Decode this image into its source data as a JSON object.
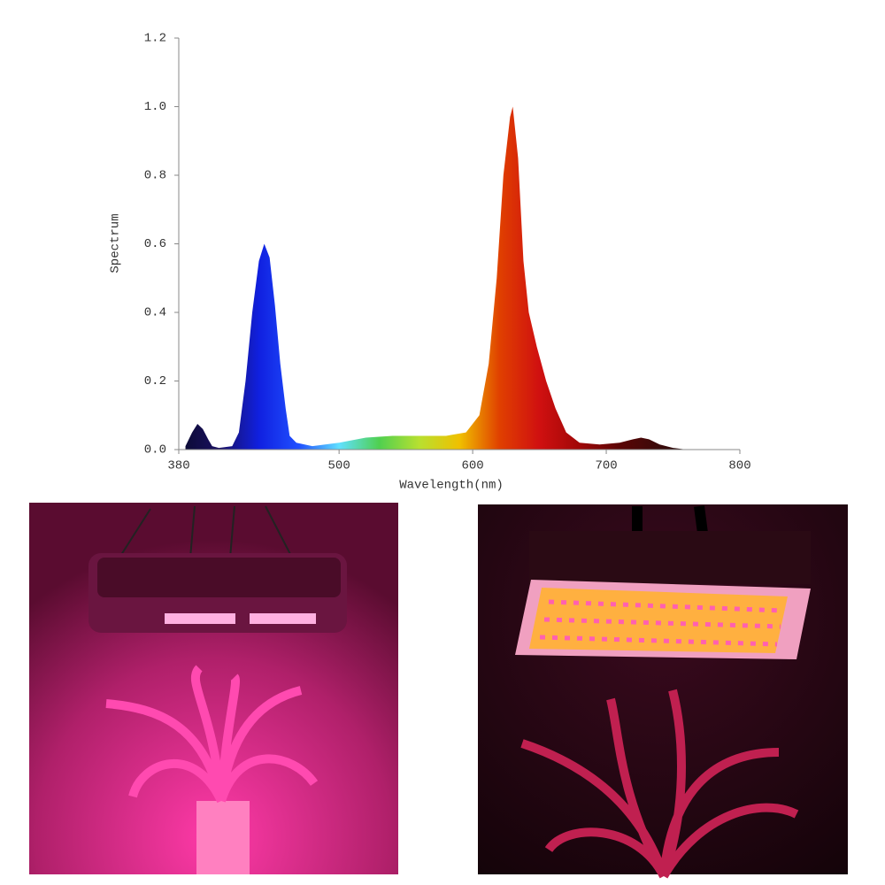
{
  "chart_data": {
    "type": "area",
    "x_label": "Wavelength(nm)",
    "y_label": "Spectrum",
    "xlim": [
      380,
      800
    ],
    "ylim": [
      0,
      1.2
    ],
    "xticks": [
      380,
      500,
      600,
      700,
      800
    ],
    "yticks": [
      {
        "value": 0,
        "label": "0.0"
      },
      0.2,
      0.4,
      0.6,
      0.8,
      {
        "value": 1,
        "label": "1.0"
      },
      1.2
    ],
    "gradient_colors": [
      "#0a0a30",
      "#1a1060",
      "#1020e0",
      "#2050ff",
      "#60e0ff",
      "#50d050",
      "#b8e030",
      "#f0c000",
      "#e04000",
      "#d01010",
      "#a00808",
      "#5a0505",
      "#3a0a0a",
      "#1a0505",
      "#100000"
    ],
    "x": [
      385,
      390,
      394,
      398,
      402,
      405,
      410,
      420,
      425,
      430,
      435,
      440,
      444,
      448,
      452,
      456,
      460,
      463,
      468,
      480,
      500,
      520,
      540,
      560,
      580,
      595,
      605,
      612,
      618,
      623,
      628,
      630,
      634,
      638,
      642,
      648,
      655,
      662,
      670,
      680,
      695,
      710,
      720,
      726,
      732,
      740,
      750,
      760
    ],
    "values": [
      0.01,
      0.05,
      0.075,
      0.06,
      0.03,
      0.01,
      0.005,
      0.01,
      0.05,
      0.2,
      0.4,
      0.55,
      0.6,
      0.56,
      0.42,
      0.25,
      0.12,
      0.04,
      0.02,
      0.01,
      0.02,
      0.035,
      0.04,
      0.04,
      0.04,
      0.05,
      0.1,
      0.25,
      0.5,
      0.8,
      0.97,
      1.0,
      0.85,
      0.55,
      0.4,
      0.3,
      0.2,
      0.12,
      0.05,
      0.02,
      0.015,
      0.02,
      0.03,
      0.035,
      0.03,
      0.015,
      0.005,
      0
    ]
  }
}
